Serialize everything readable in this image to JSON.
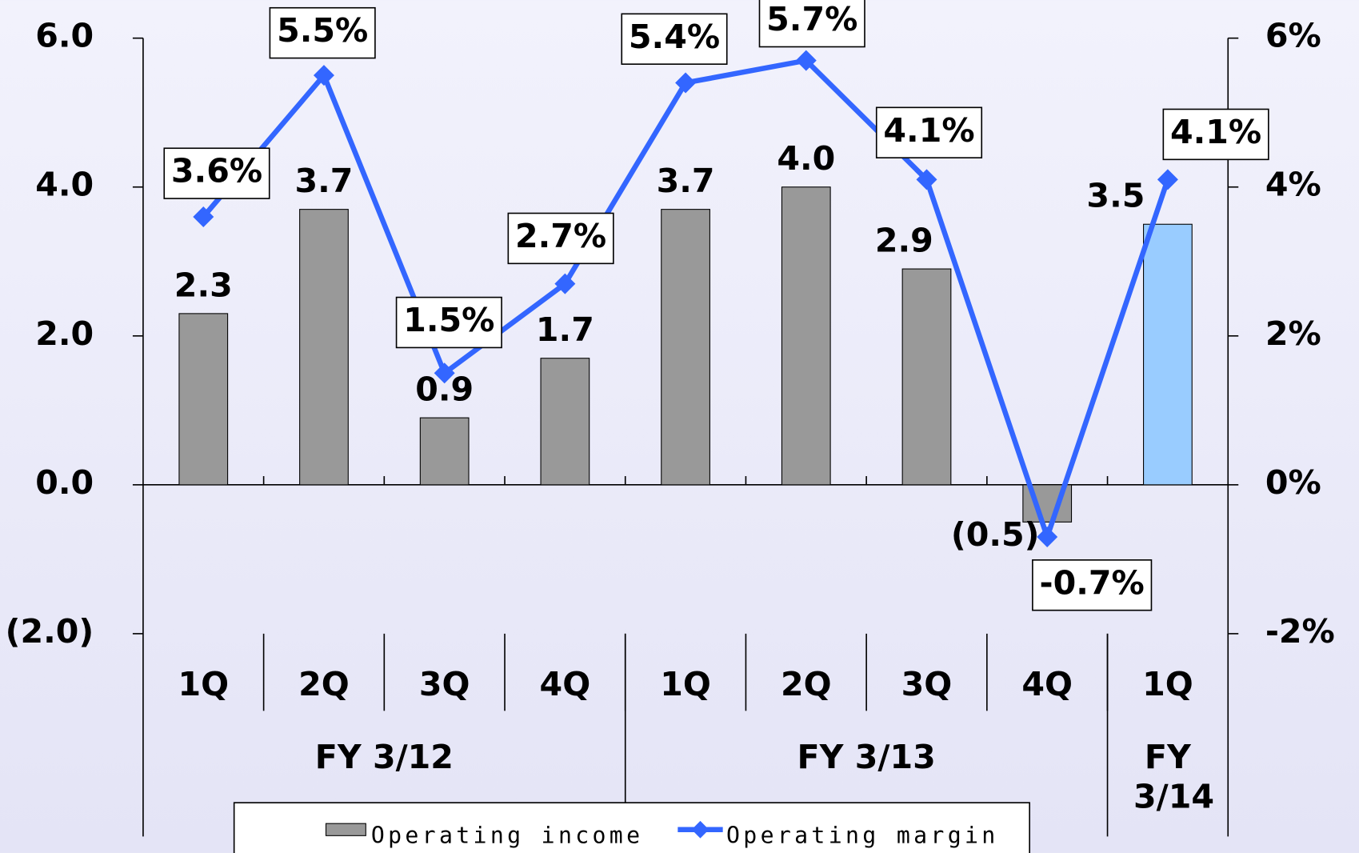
{
  "chart_data": {
    "type": "bar_line",
    "categories": [
      "1Q",
      "2Q",
      "3Q",
      "4Q",
      "1Q",
      "2Q",
      "3Q",
      "4Q",
      "1Q"
    ],
    "groups": [
      {
        "label": "FY 3/12",
        "span": 4
      },
      {
        "label": "FY 3/13",
        "span": 4
      },
      {
        "label": "FY 3/14",
        "span": 1
      }
    ],
    "series": [
      {
        "name": "Operating income",
        "type": "bar",
        "color": "#999999",
        "colors": [
          "#999999",
          "#999999",
          "#999999",
          "#999999",
          "#999999",
          "#999999",
          "#999999",
          "#999999",
          "#99ccff"
        ],
        "values": [
          2.3,
          3.7,
          0.9,
          1.7,
          3.7,
          4.0,
          2.9,
          -0.5,
          3.5
        ],
        "value_labels": [
          "2.3",
          "3.7",
          "0.9",
          "1.7",
          "3.7",
          "4.0",
          "2.9",
          "(0.5)",
          "3.5"
        ]
      },
      {
        "name": "Operating margin",
        "type": "line",
        "axis": "y2",
        "color": "#3366ff",
        "values": [
          3.6,
          5.5,
          1.5,
          2.7,
          5.4,
          5.7,
          4.1,
          -0.7,
          4.1
        ],
        "value_labels": [
          "3.6%",
          "5.5%",
          "1.5%",
          "2.7%",
          "5.4%",
          "5.7%",
          "4.1%",
          "-0.7%",
          "4.1%"
        ]
      }
    ],
    "ylim": [
      -2,
      6
    ],
    "yticks": [
      {
        "value": 6,
        "label": "6.0"
      },
      {
        "value": 4,
        "label": "4.0"
      },
      {
        "value": 2,
        "label": "2.0"
      },
      {
        "value": 0,
        "label": "0.0"
      },
      {
        "value": -2,
        "label": "(2.0)"
      }
    ],
    "y2lim": [
      -2,
      6
    ],
    "y2ticks": [
      {
        "value": 6,
        "label": "6%"
      },
      {
        "value": 4,
        "label": "4%"
      },
      {
        "value": 2,
        "label": "2%"
      },
      {
        "value": 0,
        "label": "0%"
      },
      {
        "value": -2,
        "label": "-2%"
      }
    ],
    "negative_color": "#ff0000",
    "legend": "bottom"
  }
}
